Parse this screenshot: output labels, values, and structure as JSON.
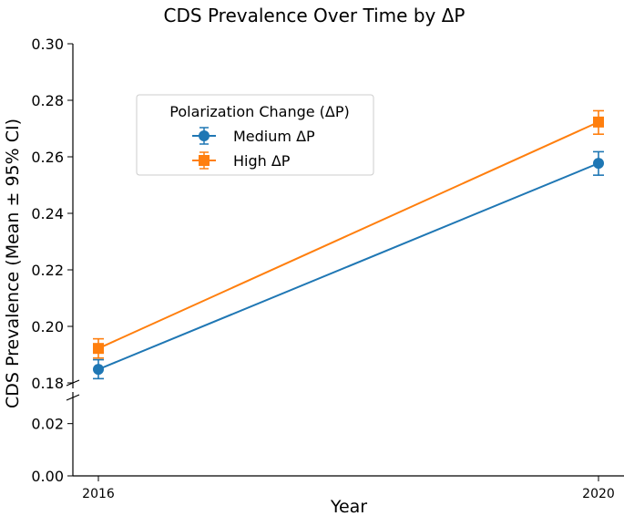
{
  "chart_data": {
    "type": "line",
    "title": "CDS Prevalence Over Time by ΔP",
    "xlabel": "Year",
    "ylabel": "CDS Prevalence (Mean ± 95% CI)",
    "x": [
      2016,
      2020
    ],
    "x_tick_labels": [
      "2016",
      "2020"
    ],
    "y_axis_broken": true,
    "y_upper_range": [
      0.18,
      0.3
    ],
    "y_upper_ticks": [
      "0.18",
      "0.20",
      "0.22",
      "0.24",
      "0.26",
      "0.28",
      "0.30"
    ],
    "y_lower_range": [
      0.0,
      0.03
    ],
    "y_lower_ticks": [
      "0.00",
      "0.02"
    ],
    "legend": {
      "title": "Polarization Change (ΔP)",
      "position": "upper-left"
    },
    "series": [
      {
        "name": "Medium ΔP",
        "color": "#1f77b4",
        "marker": "circle",
        "values": [
          0.1848,
          0.2577
        ],
        "ci_low": [
          0.1815,
          0.2535
        ],
        "ci_high": [
          0.1882,
          0.2618
        ]
      },
      {
        "name": "High ΔP",
        "color": "#ff7f0e",
        "marker": "square",
        "values": [
          0.1922,
          0.2723
        ],
        "ci_low": [
          0.1888,
          0.268
        ],
        "ci_high": [
          0.1956,
          0.2763
        ]
      }
    ]
  }
}
